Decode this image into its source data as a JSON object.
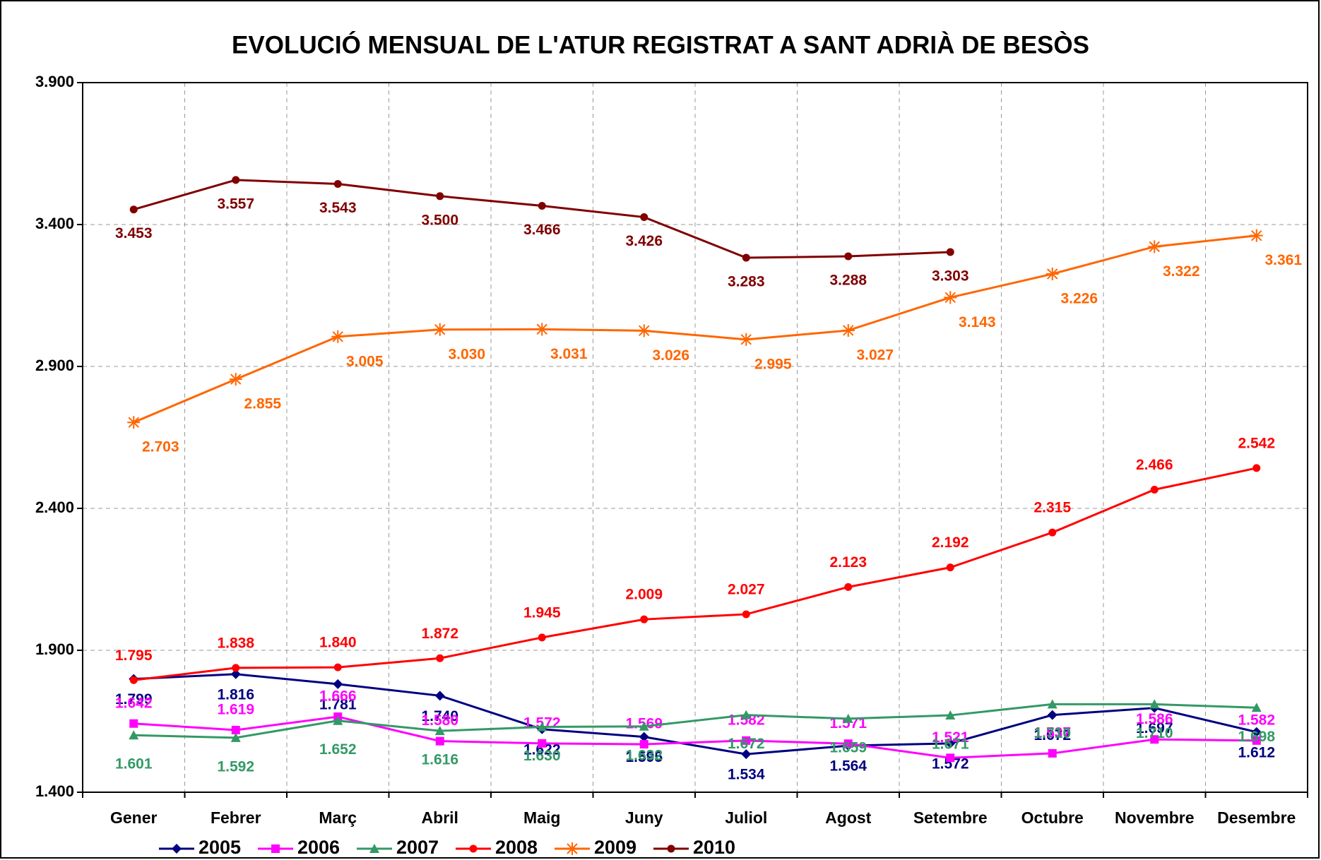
{
  "chart_data": {
    "type": "line",
    "title": "EVOLUCIÓ MENSUAL DE L'ATUR REGISTRAT A SANT ADRIÀ DE BESÒS",
    "categories": [
      "Gener",
      "Febrer",
      "Març",
      "Abril",
      "Maig",
      "Juny",
      "Juliol",
      "Agost",
      "Setembre",
      "Octubre",
      "Novembre",
      "Desembre"
    ],
    "ylim": [
      1400,
      3900
    ],
    "yticks": [
      {
        "value": 1400,
        "label": "1.400"
      },
      {
        "value": 1900,
        "label": "1.900"
      },
      {
        "value": 2400,
        "label": "2.400"
      },
      {
        "value": 2900,
        "label": "2.900"
      },
      {
        "value": 3400,
        "label": "3.400"
      },
      {
        "value": 3900,
        "label": "3.900"
      }
    ],
    "grid": true,
    "legend": "bottom",
    "series": [
      {
        "name": "2005",
        "color": "#000080",
        "marker": "diamond",
        "values": [
          1799,
          1816,
          1781,
          1740,
          1622,
          1595,
          1534,
          1564,
          1572,
          1672,
          1697,
          1612
        ],
        "value_labels": [
          "1.799",
          "1.816",
          "1.781",
          "1.740",
          "1.622",
          "1.595",
          "1.534",
          "1.564",
          "1.572",
          "1.672",
          "1.697",
          "1.612"
        ]
      },
      {
        "name": "2006",
        "color": "#FF00FF",
        "marker": "square",
        "values": [
          1642,
          1619,
          1666,
          1580,
          1572,
          1569,
          1582,
          1571,
          1521,
          1537,
          1586,
          1582
        ],
        "value_labels": [
          "1.642",
          "1.619",
          "1.666",
          "1.580",
          "1.572",
          "1.569",
          "1.582",
          "1.571",
          "1.521",
          "1.537",
          "1.586",
          "1.582"
        ]
      },
      {
        "name": "2007",
        "color": "#339966",
        "marker": "triangle",
        "values": [
          1601,
          1592,
          1652,
          1616,
          1630,
          1632,
          1672,
          1659,
          1671,
          1710,
          1710,
          1698
        ],
        "value_labels": [
          "1.601",
          "1.592",
          "1.652",
          "1.616",
          "1.630",
          "1.632",
          "1.672",
          "1.659",
          "1.671",
          "1.710",
          "1.710",
          "1.698"
        ]
      },
      {
        "name": "2008",
        "color": "#FF0000",
        "marker": "circle",
        "values": [
          1795,
          1838,
          1840,
          1872,
          1945,
          2009,
          2027,
          2123,
          2192,
          2315,
          2466,
          2542
        ],
        "value_labels": [
          "1.795",
          "1.838",
          "1.840",
          "1.872",
          "1.945",
          "2.009",
          "2.027",
          "2.123",
          "2.192",
          "2.315",
          "2.466",
          "2.542"
        ]
      },
      {
        "name": "2009",
        "color": "#FF6600",
        "marker": "star",
        "values": [
          2703,
          2855,
          3005,
          3030,
          3031,
          3026,
          2995,
          3027,
          3143,
          3226,
          3322,
          3361
        ],
        "value_labels": [
          "2.703",
          "2.855",
          "3.005",
          "3.030",
          "3.031",
          "3.026",
          "2.995",
          "3.027",
          "3.143",
          "3.226",
          "3.322",
          "3.361"
        ]
      },
      {
        "name": "2010",
        "color": "#800000",
        "marker": "circle",
        "values": [
          3453,
          3557,
          3543,
          3500,
          3466,
          3426,
          3283,
          3288,
          3303,
          null,
          null,
          null
        ],
        "value_labels": [
          "3.453",
          "3.557",
          "3.543",
          "3.500",
          "3.466",
          "3.426",
          "3.283",
          "3.288",
          "3.303",
          null,
          null,
          null
        ]
      }
    ]
  }
}
